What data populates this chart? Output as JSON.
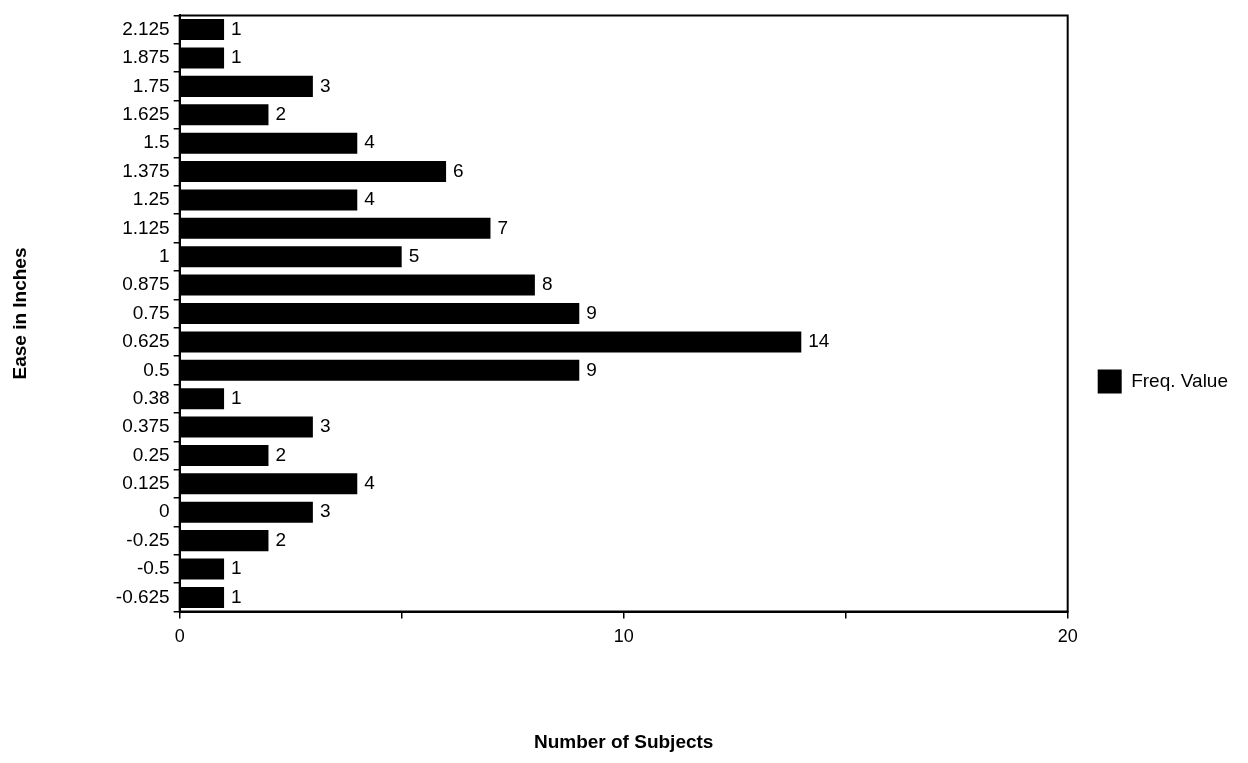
{
  "chart_data": {
    "type": "bar",
    "orientation": "horizontal",
    "xlabel": "Number of Subjects",
    "ylabel": "Ease in Inches",
    "categories": [
      "2.125",
      "1.875",
      "1.75",
      "1.625",
      "1.5",
      "1.375",
      "1.25",
      "1.125",
      "1",
      "0.875",
      "0.75",
      "0.625",
      "0.5",
      "0.38",
      "0.375",
      "0.25",
      "0.125",
      "0",
      "-0.25",
      "-0.5",
      "-0.625"
    ],
    "series": [
      {
        "name": "Freq. Value",
        "color": "#000000",
        "values": [
          1,
          1,
          3,
          2,
          4,
          6,
          4,
          7,
          5,
          8,
          9,
          14,
          9,
          1,
          3,
          2,
          4,
          3,
          2,
          1,
          1
        ]
      }
    ],
    "xlim": [
      0,
      20
    ],
    "xticks": [
      0,
      {
        "value": 5,
        "label": null
      },
      10,
      {
        "value": 15,
        "label": null
      },
      20
    ],
    "grid": false,
    "legend": "right",
    "data_labels": true
  }
}
